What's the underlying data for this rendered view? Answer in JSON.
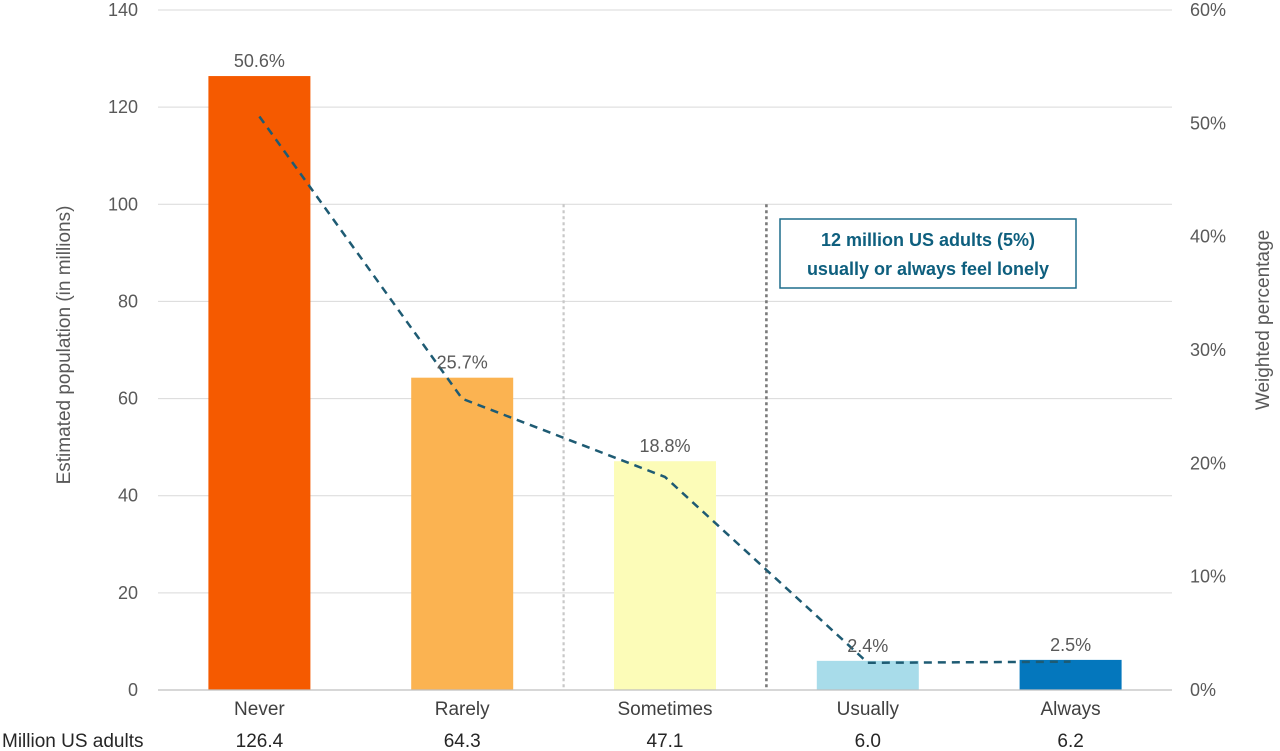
{
  "chart_data": {
    "type": "bar",
    "categories": [
      "Never",
      "Rarely",
      "Sometimes",
      "Usually",
      "Always"
    ],
    "series": [
      {
        "type": "bar",
        "axis": "left",
        "values": [
          126.4,
          64.3,
          47.1,
          6.0,
          6.2
        ],
        "colors": [
          "#f55a00",
          "#fbb351",
          "#fcfcb8",
          "#a8dcea",
          "#0477bd"
        ]
      },
      {
        "type": "line",
        "axis": "right",
        "style": "dashed",
        "color": "#1e5b73",
        "values": [
          50.6,
          25.7,
          18.8,
          2.4,
          2.5
        ],
        "labels": [
          "50.6%",
          "25.7%",
          "18.8%",
          "2.4%",
          "2.5%"
        ]
      }
    ],
    "ylabel": "Estimated population  (in millions)",
    "ylabel_right": "Weighted percentage",
    "ylim": [
      0,
      140
    ],
    "ylim_right": [
      0,
      60
    ],
    "yticks": [
      "0",
      "20",
      "40",
      "60",
      "80",
      "100",
      "120",
      "140"
    ],
    "yticks_right": [
      "0%",
      "10%",
      "20%",
      "30%",
      "40%",
      "50%",
      "60%"
    ],
    "grid": true,
    "annotation_lines": [
      "12 million US adults (5%)",
      "usually or always feel lonely"
    ],
    "table_row": {
      "label": "Million US adults",
      "values": [
        "126.4",
        "64.3",
        "47.1",
        "6.0",
        "6.2"
      ]
    }
  }
}
